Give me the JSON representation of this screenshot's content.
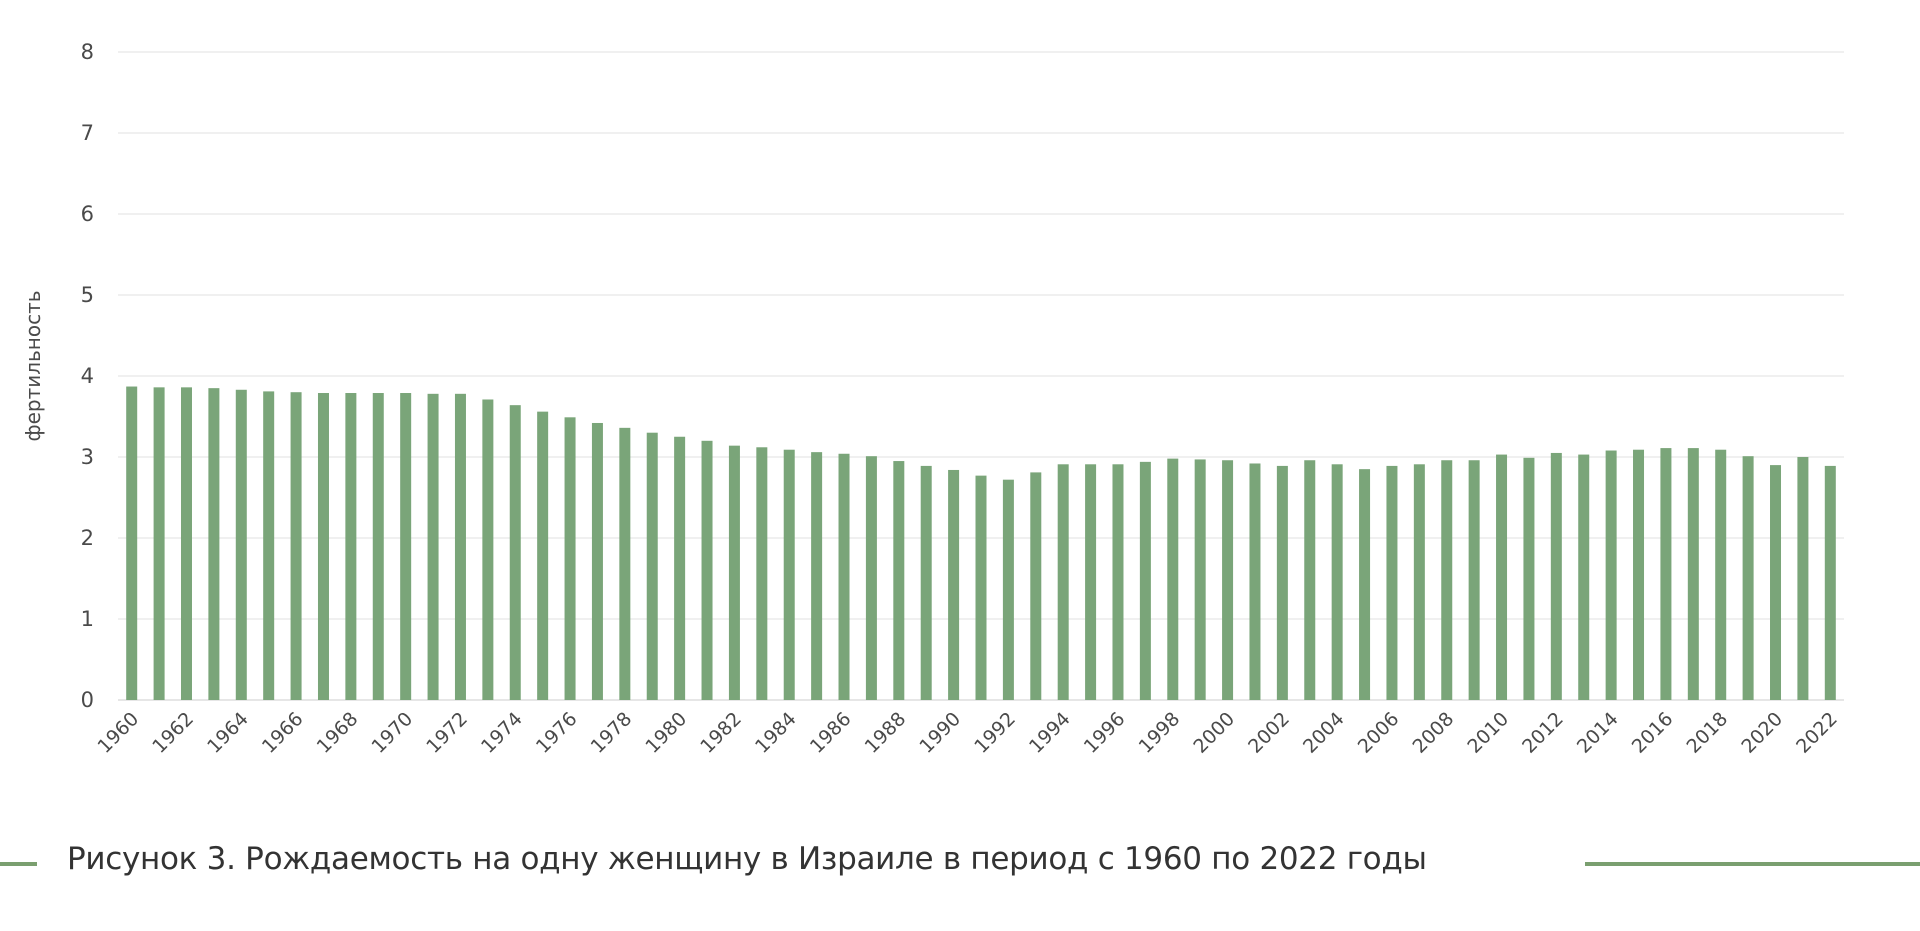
{
  "chart_data": {
    "type": "bar",
    "ylabel": "фертильность",
    "ylim": [
      0,
      8
    ],
    "yticks": [
      0,
      1,
      2,
      3,
      4,
      5,
      6,
      7,
      8
    ],
    "grid": true,
    "bar_color": "#7aa579",
    "categories": [
      "1960",
      "1961",
      "1962",
      "1963",
      "1964",
      "1965",
      "1966",
      "1967",
      "1968",
      "1969",
      "1970",
      "1971",
      "1972",
      "1973",
      "1974",
      "1975",
      "1976",
      "1977",
      "1978",
      "1979",
      "1980",
      "1981",
      "1982",
      "1983",
      "1984",
      "1985",
      "1986",
      "1987",
      "1988",
      "1989",
      "1990",
      "1991",
      "1992",
      "1993",
      "1994",
      "1995",
      "1996",
      "1997",
      "1998",
      "1999",
      "2000",
      "2001",
      "2002",
      "2003",
      "2004",
      "2005",
      "2006",
      "2007",
      "2008",
      "2009",
      "2010",
      "2011",
      "2012",
      "2013",
      "2014",
      "2015",
      "2016",
      "2017",
      "2018",
      "2019",
      "2020",
      "2021",
      "2022"
    ],
    "tick_labels": [
      "1960",
      "1962",
      "1964",
      "1966",
      "1968",
      "1970",
      "1972",
      "1974",
      "1976",
      "1978",
      "1980",
      "1982",
      "1984",
      "1986",
      "1988",
      "1990",
      "1992",
      "1994",
      "1996",
      "1998",
      "2000",
      "2002",
      "2004",
      "2006",
      "2008",
      "2010",
      "2012",
      "2014",
      "2016",
      "2018",
      "2020",
      "2022"
    ],
    "values": [
      3.87,
      3.86,
      3.86,
      3.85,
      3.83,
      3.81,
      3.8,
      3.79,
      3.79,
      3.79,
      3.79,
      3.78,
      3.78,
      3.71,
      3.64,
      3.56,
      3.49,
      3.42,
      3.36,
      3.3,
      3.25,
      3.2,
      3.14,
      3.12,
      3.09,
      3.06,
      3.04,
      3.01,
      2.95,
      2.89,
      2.84,
      2.77,
      2.72,
      2.81,
      2.91,
      2.91,
      2.91,
      2.94,
      2.98,
      2.97,
      2.96,
      2.92,
      2.89,
      2.96,
      2.91,
      2.85,
      2.89,
      2.91,
      2.96,
      2.96,
      3.03,
      2.99,
      3.05,
      3.03,
      3.08,
      3.09,
      3.11,
      3.11,
      3.09,
      3.01,
      2.9,
      3.0,
      2.89
    ]
  },
  "caption": {
    "text": "Рисунок 3. Рождаемость на одну женщину в Израиле в период с 1960 по 2022 годы",
    "line_color": "#7a9f6f"
  }
}
